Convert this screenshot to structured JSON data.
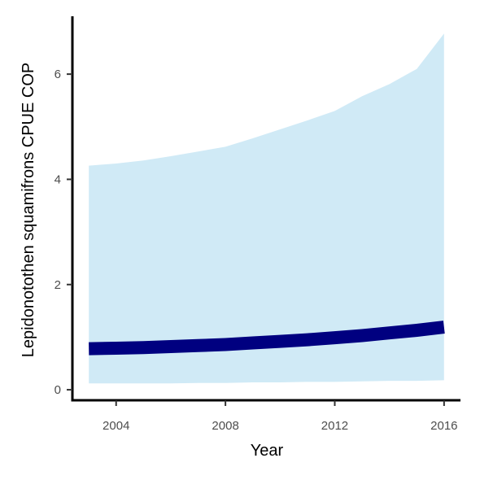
{
  "chart_data": {
    "type": "line",
    "xlabel": "Year",
    "ylabel": "Lepidonotothen squamifrons  CPUE COP",
    "xlim": [
      2002.4,
      2016.6
    ],
    "ylim": [
      -0.2,
      7.1
    ],
    "x_ticks": [
      2004,
      2008,
      2012,
      2016
    ],
    "y_ticks": [
      0,
      2,
      4,
      6
    ],
    "grid": false,
    "legend": "none",
    "colors": {
      "line": "#000080",
      "band": "#d0eaf6",
      "axis": "#000000"
    },
    "series": [
      {
        "x": [
          2003,
          2004,
          2005,
          2006,
          2007,
          2008,
          2009,
          2010,
          2011,
          2012,
          2013,
          2014,
          2015,
          2016
        ],
        "values": [
          0.78,
          0.79,
          0.8,
          0.82,
          0.84,
          0.86,
          0.89,
          0.92,
          0.95,
          0.99,
          1.03,
          1.08,
          1.13,
          1.19
        ],
        "lower": [
          0.12,
          0.12,
          0.12,
          0.12,
          0.13,
          0.13,
          0.14,
          0.14,
          0.15,
          0.15,
          0.16,
          0.17,
          0.17,
          0.18
        ],
        "upper": [
          4.26,
          4.3,
          4.36,
          4.44,
          4.53,
          4.62,
          4.78,
          4.95,
          5.12,
          5.3,
          5.58,
          5.81,
          6.1,
          6.77
        ]
      }
    ]
  }
}
